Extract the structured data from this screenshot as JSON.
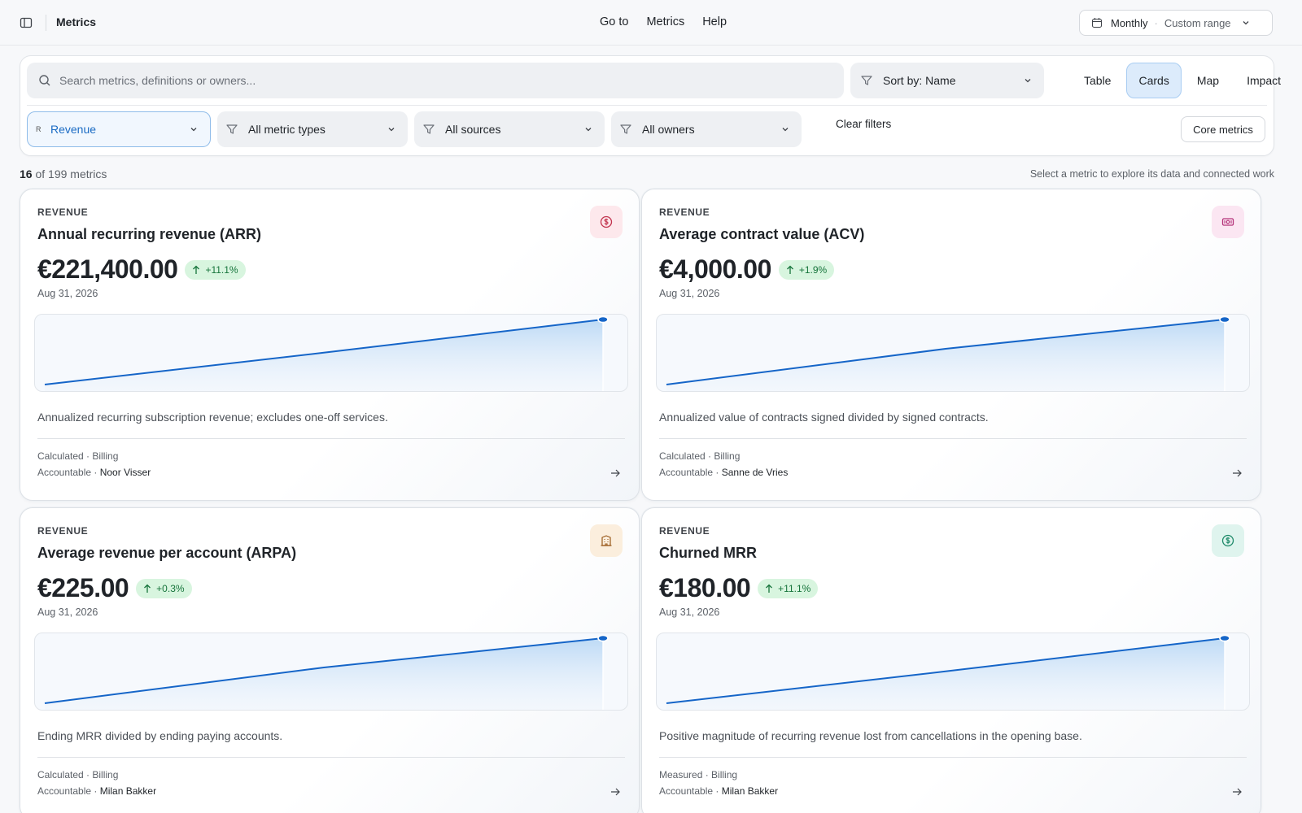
{
  "topbar": {
    "title": "Metrics",
    "nav": [
      "Go to",
      "Metrics",
      "Help"
    ],
    "period_value": "Monthly",
    "period_range": "Custom range"
  },
  "search": {
    "placeholder": "Search metrics, definitions or owners..."
  },
  "sort": {
    "label": "Sort by: Name"
  },
  "views": [
    "Table",
    "Cards",
    "Map",
    "Impact"
  ],
  "active_view": "Cards",
  "filters": {
    "category_mark": "R",
    "category": "Revenue",
    "metric_types": "All metric types",
    "sources": "All sources",
    "owners": "All owners",
    "clear": "Clear filters",
    "core": "Core metrics"
  },
  "summary": {
    "shown": "16",
    "total_text": " of 199 metrics",
    "hint": "Select a metric to explore its data and connected work"
  },
  "cards": [
    {
      "category": "REVENUE",
      "name": "Annual recurring revenue (ARR)",
      "value": "€221,400.00",
      "delta": "+11.1%",
      "date": "Aug 31, 2026",
      "description": "Annualized recurring subscription revenue; excludes one-off services.",
      "kind": "Calculated · Billing",
      "accountable_label": "Accountable · ",
      "owner": "Noor Visser",
      "icon": "dollar-circle-icon",
      "icon_color": "#c2334d",
      "icon_bg": "#fde8ec",
      "trend": [
        0.0,
        0.49,
        1.0
      ]
    },
    {
      "category": "REVENUE",
      "name": "Average contract value (ACV)",
      "value": "€4,000.00",
      "delta": "+1.9%",
      "date": "Aug 31, 2026",
      "description": "Annualized value of contracts signed divided by signed contracts.",
      "kind": "Calculated · Billing",
      "accountable_label": "Accountable · ",
      "owner": "Sanne de Vries",
      "icon": "banknote-icon",
      "icon_color": "#b5337a",
      "icon_bg": "#fbe6f2",
      "trend": [
        0.0,
        0.55,
        1.0
      ]
    },
    {
      "category": "REVENUE",
      "name": "Average revenue per account (ARPA)",
      "value": "€225.00",
      "delta": "+0.3%",
      "date": "Aug 31, 2026",
      "description": "Ending MRR divided by ending paying accounts.",
      "kind": "Calculated · Billing",
      "accountable_label": "Accountable · ",
      "owner": "Milan Bakker",
      "icon": "building-icon",
      "icon_color": "#9a5a1c",
      "icon_bg": "#fbeedd",
      "trend": [
        0.0,
        0.55,
        1.0
      ]
    },
    {
      "category": "REVENUE",
      "name": "Churned MRR",
      "value": "€180.00",
      "delta": "+11.1%",
      "date": "Aug 31, 2026",
      "description": "Positive magnitude of recurring revenue lost from cancellations in the opening base.",
      "kind": "Measured · Billing",
      "accountable_label": "Accountable · ",
      "owner": "Milan Bakker",
      "icon": "dollar-circle-icon",
      "icon_color": "#1f8a6a",
      "icon_bg": "#dff4ee",
      "trend": [
        0.0,
        0.49,
        1.0
      ]
    }
  ]
}
